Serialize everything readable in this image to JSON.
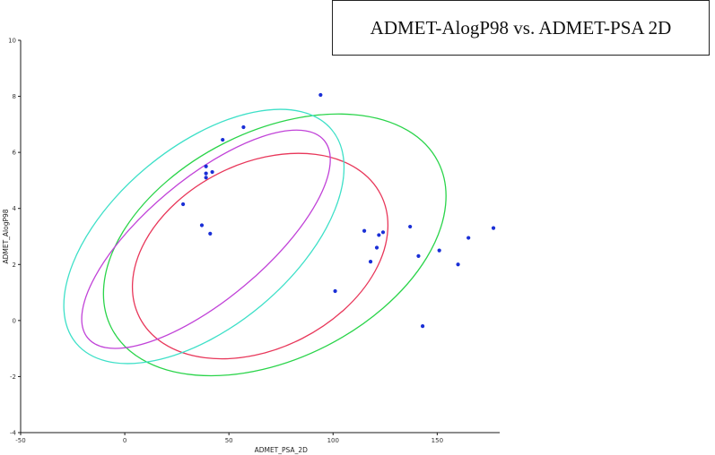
{
  "chart_data": {
    "type": "scatter",
    "title": "ADMET-AlogP98 vs. ADMET-PSA 2D",
    "xlabel": "ADMET_PSA_2D",
    "ylabel": "ADMET_AlogP98",
    "xlim": [
      -50,
      180
    ],
    "ylim": [
      -4,
      10
    ],
    "x_ticks": [
      -50,
      0,
      50,
      100,
      150
    ],
    "y_ticks": [
      -4,
      -2,
      0,
      2,
      4,
      6,
      8,
      10
    ],
    "grid": false,
    "points": [
      {
        "x": 94,
        "y": 8.05
      },
      {
        "x": 57,
        "y": 6.9
      },
      {
        "x": 47,
        "y": 6.45
      },
      {
        "x": 39,
        "y": 5.5
      },
      {
        "x": 42,
        "y": 5.3
      },
      {
        "x": 39,
        "y": 5.25
      },
      {
        "x": 39,
        "y": 5.1
      },
      {
        "x": 28,
        "y": 4.15
      },
      {
        "x": 37,
        "y": 3.4
      },
      {
        "x": 41,
        "y": 3.1
      },
      {
        "x": 101,
        "y": 1.05
      },
      {
        "x": 115,
        "y": 3.2
      },
      {
        "x": 122,
        "y": 3.05
      },
      {
        "x": 124,
        "y": 3.15
      },
      {
        "x": 121,
        "y": 2.6
      },
      {
        "x": 118,
        "y": 2.1
      },
      {
        "x": 137,
        "y": 3.35
      },
      {
        "x": 141,
        "y": 2.3
      },
      {
        "x": 151,
        "y": 2.5
      },
      {
        "x": 160,
        "y": 2.0
      },
      {
        "x": 165,
        "y": 2.95
      },
      {
        "x": 177,
        "y": 3.3
      },
      {
        "x": 143,
        "y": -0.2
      }
    ],
    "point_color": "#1a2fd6",
    "ellipses": [
      {
        "color": "#2ad44a",
        "cx": 72,
        "cy": 2.7,
        "rx": 88,
        "ry": 4.05,
        "angle_deg": -27
      },
      {
        "color": "#e8375a",
        "cx": 65,
        "cy": 2.3,
        "rx": 65,
        "ry": 3.3,
        "angle_deg": -27
      },
      {
        "color": "#3ee0c8",
        "cx": 38,
        "cy": 3.0,
        "rx": 80,
        "ry": 3.2,
        "angle_deg": -40
      },
      {
        "color": "#c143d8",
        "cx": 39,
        "cy": 2.9,
        "rx": 74,
        "ry": 2.15,
        "angle_deg": -40
      }
    ]
  }
}
